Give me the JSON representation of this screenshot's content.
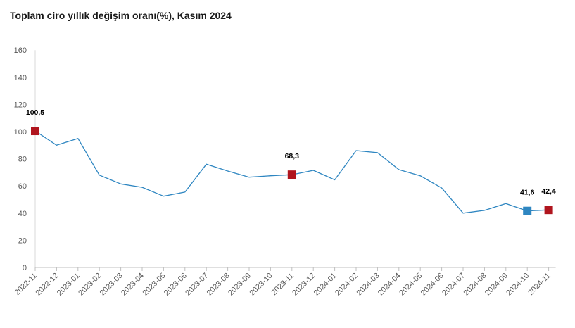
{
  "title": "Toplam ciro yıllık değişim oranı(%), Kasım 2024",
  "chart_data": {
    "type": "line",
    "title": "Toplam ciro yıllık değişim oranı(%), Kasım 2024",
    "xlabel": "",
    "ylabel": "",
    "ylim": [
      0,
      160
    ],
    "yticks": [
      0,
      20,
      40,
      60,
      80,
      100,
      120,
      140,
      160
    ],
    "grid": false,
    "legend": "none",
    "x": [
      "2022-11",
      "2022-12",
      "2023-01",
      "2023-02",
      "2023-03",
      "2023-04",
      "2023-05",
      "2023-06",
      "2023-07",
      "2023-08",
      "2023-09",
      "2023-10",
      "2023-11",
      "2023-12",
      "2024-01",
      "2024-02",
      "2024-03",
      "2024-04",
      "2024-05",
      "2024-06",
      "2024-07",
      "2024-08",
      "2024-09",
      "2024-10",
      "2024-11"
    ],
    "series": [
      {
        "color": "#2e86c1",
        "values": [
          100.5,
          90,
          95,
          68,
          61.5,
          59,
          52.5,
          55.5,
          76,
          71,
          66.5,
          67.5,
          68.3,
          71.5,
          64.5,
          86,
          84.5,
          72,
          67.5,
          58.5,
          40,
          42,
          47,
          41.6,
          42.4
        ]
      }
    ],
    "markers": [
      {
        "x": "2022-11",
        "value": 100.5,
        "label": "100,5",
        "color": "#b0151e"
      },
      {
        "x": "2023-11",
        "value": 68.3,
        "label": "68,3",
        "color": "#b0151e"
      },
      {
        "x": "2024-10",
        "value": 41.6,
        "label": "41,6",
        "color": "#2e86c1"
      },
      {
        "x": "2024-11",
        "value": 42.4,
        "label": "42,4",
        "color": "#b0151e"
      }
    ]
  }
}
